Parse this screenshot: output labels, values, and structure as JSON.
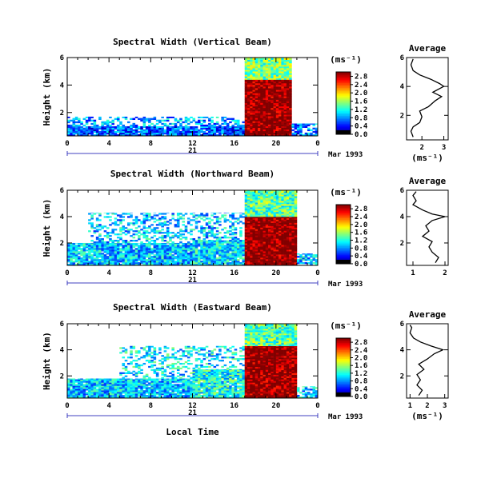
{
  "chart_data": [
    {
      "type": "heatmap",
      "title": "Spectral Width (Vertical Beam)",
      "ylabel": "Height (km)",
      "x_ticks": [
        "0",
        "4",
        "8",
        "12",
        "16",
        "20",
        "0"
      ],
      "xlim": [
        0,
        24
      ],
      "y_ticks": [
        "2",
        "4",
        "6"
      ],
      "ylim": [
        0.3,
        6.0
      ],
      "date_day": "21",
      "date_label": "Mar 1993",
      "colorbar_unit": "(ms⁻¹)",
      "colorbar_ticks": [
        "0.0",
        "0.4",
        "0.8",
        "1.2",
        "1.6",
        "2.0",
        "2.4",
        "2.8"
      ],
      "avg_title": "Average",
      "avg_xlabel": "(ms⁻¹)",
      "avg_x_ticks": [
        "2",
        "3"
      ],
      "avg_xlim": [
        1.3,
        3.2
      ],
      "avg_y_ticks": [
        "2",
        "4",
        "6"
      ],
      "avg_profile": [
        [
          1.6,
          0.5
        ],
        [
          1.5,
          0.9
        ],
        [
          1.6,
          1.2
        ],
        [
          1.9,
          1.5
        ],
        [
          2.0,
          1.9
        ],
        [
          1.9,
          2.3
        ],
        [
          2.3,
          2.6
        ],
        [
          2.6,
          3.0
        ],
        [
          2.9,
          3.3
        ],
        [
          2.5,
          3.6
        ],
        [
          3.0,
          4.0
        ],
        [
          2.8,
          4.2
        ],
        [
          2.4,
          4.5
        ],
        [
          1.9,
          4.8
        ],
        [
          1.6,
          5.1
        ],
        [
          1.5,
          5.5
        ],
        [
          1.6,
          5.9
        ]
      ],
      "regions": [
        {
          "t0": 0,
          "t1": 17,
          "h0": 0.3,
          "h1": 1.0,
          "level": 0.6,
          "density": 0.95
        },
        {
          "t0": 0,
          "t1": 17,
          "h0": 1.0,
          "h1": 1.7,
          "level": 0.8,
          "density": 0.45
        },
        {
          "t0": 17,
          "t1": 21.5,
          "h0": 0.3,
          "h1": 4.4,
          "level": 2.8,
          "density": 1.0
        },
        {
          "t0": 17,
          "t1": 21.5,
          "h0": 4.4,
          "h1": 6.0,
          "level": 1.4,
          "density": 1.0
        },
        {
          "t0": 21.5,
          "t1": 24,
          "h0": 0.3,
          "h1": 1.2,
          "level": 0.7,
          "density": 0.7
        }
      ]
    },
    {
      "type": "heatmap",
      "title": "Spectral Width (Northward Beam)",
      "ylabel": "Height (km)",
      "x_ticks": [
        "0",
        "4",
        "8",
        "12",
        "16",
        "20",
        "0"
      ],
      "xlim": [
        0,
        24
      ],
      "y_ticks": [
        "2",
        "4",
        "6"
      ],
      "ylim": [
        0.3,
        6.0
      ],
      "date_day": "21",
      "date_label": "Mar 1993",
      "colorbar_unit": "(ms⁻¹)",
      "colorbar_ticks": [
        "0.0",
        "0.4",
        "0.8",
        "1.2",
        "1.6",
        "2.0",
        "2.4",
        "2.8"
      ],
      "avg_title": "Average",
      "avg_xlabel": "",
      "avg_x_ticks": [
        "1",
        "2"
      ],
      "avg_xlim": [
        0.8,
        2.1
      ],
      "avg_y_ticks": [
        "2",
        "4",
        "6"
      ],
      "avg_profile": [
        [
          1.7,
          0.5
        ],
        [
          1.8,
          0.9
        ],
        [
          1.6,
          1.3
        ],
        [
          1.5,
          1.7
        ],
        [
          1.6,
          2.1
        ],
        [
          1.3,
          2.5
        ],
        [
          1.5,
          2.9
        ],
        [
          1.4,
          3.3
        ],
        [
          1.6,
          3.7
        ],
        [
          2.0,
          4.0
        ],
        [
          1.6,
          4.2
        ],
        [
          1.3,
          4.5
        ],
        [
          1.0,
          4.9
        ],
        [
          1.1,
          5.2
        ],
        [
          1.0,
          5.6
        ],
        [
          1.1,
          5.9
        ]
      ],
      "regions": [
        {
          "t0": 0,
          "t1": 12,
          "h0": 0.3,
          "h1": 2.0,
          "level": 0.9,
          "density": 0.95
        },
        {
          "t0": 2,
          "t1": 17,
          "h0": 2.0,
          "h1": 4.3,
          "level": 0.9,
          "density": 0.4
        },
        {
          "t0": 12,
          "t1": 17,
          "h0": 0.3,
          "h1": 2.2,
          "level": 1.0,
          "density": 0.95
        },
        {
          "t0": 17,
          "t1": 22,
          "h0": 0.3,
          "h1": 4.0,
          "level": 2.8,
          "density": 1.0
        },
        {
          "t0": 17,
          "t1": 22,
          "h0": 4.0,
          "h1": 6.0,
          "level": 1.3,
          "density": 1.0
        },
        {
          "t0": 22,
          "t1": 24,
          "h0": 0.3,
          "h1": 1.2,
          "level": 0.9,
          "density": 0.7
        }
      ]
    },
    {
      "type": "heatmap",
      "title": "Spectral Width (Eastward Beam)",
      "ylabel": "Height (km)",
      "xlabel": "Local Time",
      "x_ticks": [
        "0",
        "4",
        "8",
        "12",
        "16",
        "20",
        "0"
      ],
      "xlim": [
        0,
        24
      ],
      "y_ticks": [
        "2",
        "4",
        "6"
      ],
      "ylim": [
        0.3,
        6.0
      ],
      "date_day": "21",
      "date_label": "Mar 1993",
      "colorbar_unit": "(ms⁻¹)",
      "colorbar_ticks": [
        "0.0",
        "0.4",
        "0.8",
        "1.2",
        "1.6",
        "2.0",
        "2.4",
        "2.8"
      ],
      "avg_title": "Average",
      "avg_xlabel": "(ms⁻¹)",
      "avg_x_ticks": [
        "1",
        "2",
        "3"
      ],
      "avg_xlim": [
        0.8,
        3.2
      ],
      "avg_y_ticks": [
        "2",
        "4",
        "6"
      ],
      "avg_profile": [
        [
          1.5,
          0.5
        ],
        [
          1.7,
          0.9
        ],
        [
          1.4,
          1.3
        ],
        [
          1.6,
          1.7
        ],
        [
          1.4,
          2.1
        ],
        [
          1.8,
          2.5
        ],
        [
          1.5,
          2.9
        ],
        [
          2.0,
          3.3
        ],
        [
          2.4,
          3.7
        ],
        [
          2.9,
          4.0
        ],
        [
          2.2,
          4.3
        ],
        [
          1.6,
          4.6
        ],
        [
          1.2,
          4.9
        ],
        [
          1.0,
          5.3
        ],
        [
          1.1,
          5.7
        ],
        [
          1.0,
          5.9
        ]
      ],
      "regions": [
        {
          "t0": 0,
          "t1": 12,
          "h0": 0.3,
          "h1": 1.8,
          "level": 0.9,
          "density": 0.95
        },
        {
          "t0": 5,
          "t1": 17,
          "h0": 1.8,
          "h1": 4.3,
          "level": 1.0,
          "density": 0.35
        },
        {
          "t0": 12,
          "t1": 17,
          "h0": 0.3,
          "h1": 2.5,
          "level": 1.1,
          "density": 0.95
        },
        {
          "t0": 17,
          "t1": 22,
          "h0": 0.3,
          "h1": 4.3,
          "level": 2.8,
          "density": 1.0
        },
        {
          "t0": 17,
          "t1": 22,
          "h0": 4.3,
          "h1": 6.0,
          "level": 1.3,
          "density": 1.0
        },
        {
          "t0": 22,
          "t1": 24,
          "h0": 0.3,
          "h1": 1.2,
          "level": 0.9,
          "density": 0.7
        }
      ]
    }
  ]
}
